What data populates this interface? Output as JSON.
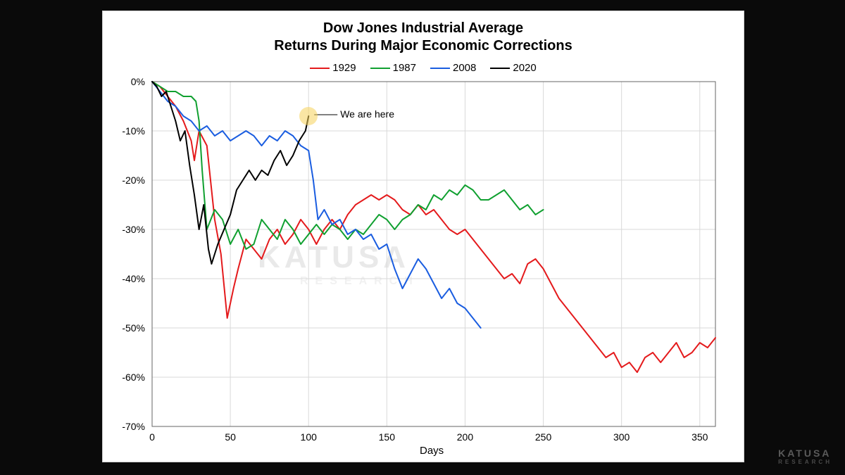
{
  "chart": {
    "type": "line",
    "title_line1": "Dow Jones Industrial Average",
    "title_line2": "Returns During Major Economic Corrections",
    "title_fontsize": 20,
    "xlabel": "Days",
    "label_fontsize": 15,
    "xlim": [
      0,
      360
    ],
    "ylim": [
      -70,
      0
    ],
    "xtick_step": 50,
    "ytick_step": 10,
    "ytick_suffix": "%",
    "background_color": "#ffffff",
    "grid_color": "#d9d9d9",
    "grid_width": 1,
    "axis_color": "#666666",
    "tick_fontsize": 14,
    "legend": {
      "items": [
        {
          "label": "1929",
          "color": "#e41a1c"
        },
        {
          "label": "1987",
          "color": "#10a030"
        },
        {
          "label": "2008",
          "color": "#1a5de0"
        },
        {
          "label": "2020",
          "color": "#000000"
        }
      ],
      "fontsize": 15
    },
    "annotation": {
      "text": "We are here",
      "at_x": 100,
      "at_y": -7,
      "highlight_color": "rgba(245,210,90,.55)",
      "label_dx": 45,
      "label_dy": -2
    },
    "watermark": {
      "text": "KATUSA",
      "subtext": "RESEARCH",
      "color": "#e9e9e9"
    },
    "series": {
      "1929": {
        "color": "#e41a1c",
        "line_width": 2,
        "x": [
          0,
          5,
          10,
          15,
          20,
          25,
          27,
          30,
          35,
          40,
          44,
          48,
          52,
          55,
          60,
          65,
          70,
          75,
          80,
          85,
          90,
          95,
          100,
          105,
          110,
          115,
          120,
          125,
          130,
          135,
          140,
          145,
          150,
          155,
          160,
          165,
          170,
          175,
          180,
          185,
          190,
          195,
          200,
          205,
          210,
          215,
          220,
          225,
          230,
          235,
          240,
          245,
          250,
          255,
          260,
          265,
          270,
          275,
          280,
          285,
          290,
          295,
          300,
          305,
          310,
          315,
          320,
          325,
          330,
          335,
          340,
          345,
          350,
          355,
          360
        ],
        "y": [
          0,
          -1,
          -3,
          -5,
          -8,
          -12,
          -16,
          -10,
          -13,
          -28,
          -35,
          -48,
          -42,
          -38,
          -32,
          -34,
          -36,
          -32,
          -30,
          -33,
          -31,
          -28,
          -30,
          -33,
          -30,
          -28,
          -30,
          -27,
          -25,
          -24,
          -23,
          -24,
          -23,
          -24,
          -26,
          -27,
          -25,
          -27,
          -26,
          -28,
          -30,
          -31,
          -30,
          -32,
          -34,
          -36,
          -38,
          -40,
          -39,
          -41,
          -37,
          -36,
          -38,
          -41,
          -44,
          -46,
          -48,
          -50,
          -52,
          -54,
          -56,
          -55,
          -58,
          -57,
          -59,
          -56,
          -55,
          -57,
          -55,
          -53,
          -56,
          -55,
          -53,
          -54,
          -52
        ]
      },
      "1987": {
        "color": "#10a030",
        "line_width": 2,
        "x": [
          0,
          5,
          10,
          15,
          20,
          25,
          28,
          30,
          32,
          35,
          40,
          45,
          50,
          55,
          60,
          65,
          70,
          75,
          80,
          85,
          90,
          95,
          100,
          105,
          110,
          115,
          120,
          125,
          130,
          135,
          140,
          145,
          150,
          155,
          160,
          165,
          170,
          175,
          180,
          185,
          190,
          195,
          200,
          205,
          210,
          215,
          220,
          225,
          230,
          235,
          240,
          245,
          250
        ],
        "y": [
          0,
          -1,
          -2,
          -2,
          -3,
          -3,
          -4,
          -8,
          -18,
          -30,
          -26,
          -28,
          -33,
          -30,
          -34,
          -33,
          -28,
          -30,
          -32,
          -28,
          -30,
          -33,
          -31,
          -29,
          -31,
          -29,
          -30,
          -32,
          -30,
          -31,
          -29,
          -27,
          -28,
          -30,
          -28,
          -27,
          -25,
          -26,
          -23,
          -24,
          -22,
          -23,
          -21,
          -22,
          -24,
          -24,
          -23,
          -22,
          -24,
          -26,
          -25,
          -27,
          -26
        ]
      },
      "2008": {
        "color": "#1a5de0",
        "line_width": 2,
        "x": [
          0,
          5,
          10,
          15,
          20,
          25,
          30,
          35,
          40,
          45,
          50,
          55,
          60,
          65,
          70,
          75,
          80,
          85,
          90,
          95,
          100,
          103,
          106,
          110,
          115,
          120,
          125,
          130,
          135,
          140,
          145,
          150,
          155,
          160,
          165,
          170,
          175,
          180,
          185,
          190,
          195,
          200,
          205,
          210
        ],
        "y": [
          0,
          -2,
          -4,
          -5,
          -7,
          -8,
          -10,
          -9,
          -11,
          -10,
          -12,
          -11,
          -10,
          -11,
          -13,
          -11,
          -12,
          -10,
          -11,
          -13,
          -14,
          -20,
          -28,
          -26,
          -29,
          -28,
          -31,
          -30,
          -32,
          -31,
          -34,
          -33,
          -38,
          -42,
          -39,
          -36,
          -38,
          -41,
          -44,
          -42,
          -45,
          -46,
          -48,
          -50
        ]
      },
      "2020": {
        "color": "#000000",
        "line_width": 2,
        "x": [
          0,
          3,
          6,
          9,
          12,
          15,
          18,
          21,
          24,
          27,
          30,
          33,
          36,
          38,
          42,
          46,
          50,
          54,
          58,
          62,
          66,
          70,
          74,
          78,
          82,
          86,
          90,
          94,
          98,
          100
        ],
        "y": [
          0,
          -1,
          -3,
          -2,
          -5,
          -8,
          -12,
          -10,
          -17,
          -23,
          -30,
          -25,
          -34,
          -37,
          -33,
          -30,
          -27,
          -22,
          -20,
          -18,
          -20,
          -18,
          -19,
          -16,
          -14,
          -17,
          -15,
          -12,
          -10,
          -7
        ]
      }
    }
  },
  "corner_logo": {
    "text": "KATUSA",
    "subtext": "RESEARCH",
    "color": "#5a5a5a"
  }
}
